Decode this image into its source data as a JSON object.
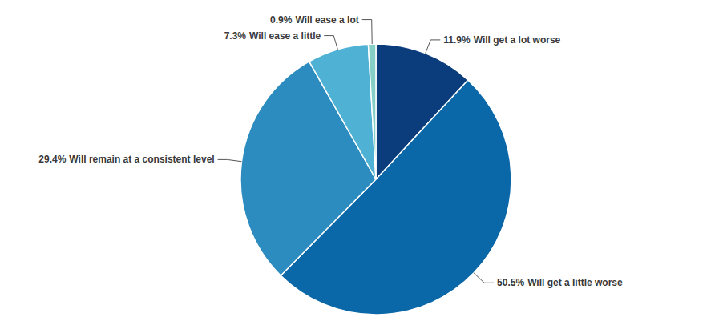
{
  "chart_data": {
    "type": "pie",
    "categories": [
      "Will get a lot worse",
      "Will get a little worse",
      "Will remain at a consistent level",
      "Will ease a little",
      "Will ease a lot"
    ],
    "values": [
      11.9,
      50.5,
      29.4,
      7.3,
      0.9
    ],
    "value_labels": [
      "11.9%",
      "50.5%",
      "29.4%",
      "7.3%",
      "0.9%"
    ],
    "colors": [
      "#0b3c7c",
      "#0a67a8",
      "#2c8cbf",
      "#4fb2d4",
      "#86cfc6"
    ],
    "data_labels": true
  }
}
